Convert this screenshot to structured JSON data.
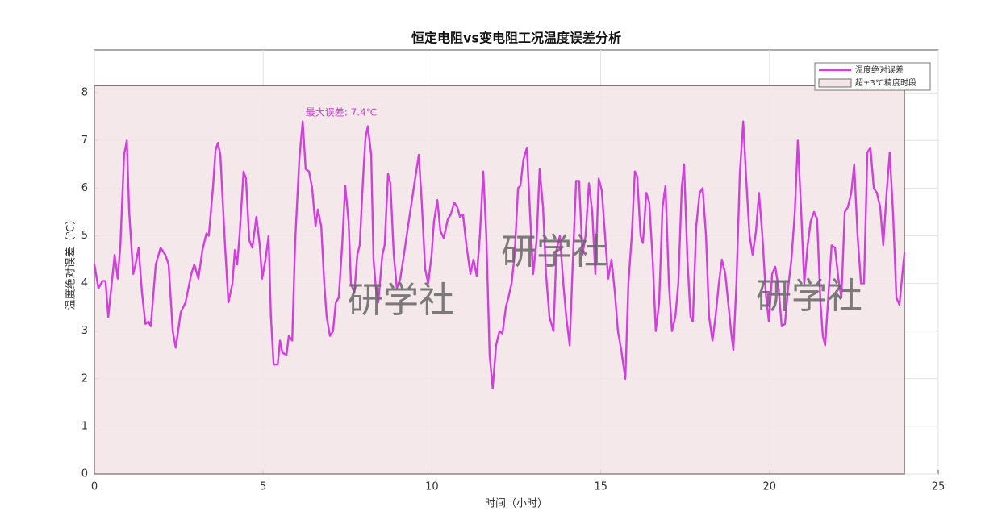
{
  "chart_data": {
    "type": "line",
    "title": "恒定电阻vs变电阻工况温度误差分析",
    "xlabel": "时间（小时）",
    "ylabel": "温度绝对误差（℃）",
    "annotation": "最大误差: 7.4℃",
    "watermark": "研学社",
    "xlim": [
      0,
      25
    ],
    "xticks": [
      0,
      5,
      10,
      15,
      20,
      25
    ],
    "ylim": [
      0,
      8.9
    ],
    "yticks": [
      0,
      1,
      2,
      3,
      4,
      5,
      6,
      7,
      8
    ],
    "grid": true,
    "legend": "upper right",
    "spans": [
      {
        "name": "超±3℃精度时段",
        "color": "#f3e6e8",
        "edge": "#7a6a6a",
        "x": [
          0,
          24
        ],
        "y": [
          0,
          8.15
        ]
      }
    ],
    "x": [
      0,
      0.12,
      0.24,
      0.33,
      0.41,
      0.6,
      0.69,
      0.77,
      0.88,
      0.96,
      1.03,
      1.15,
      1.22,
      1.31,
      1.41,
      1.51,
      1.6,
      1.67,
      1.82,
      1.96,
      2.1,
      2.2,
      2.32,
      2.41,
      2.56,
      2.7,
      2.87,
      2.96,
      3.08,
      3.2,
      3.32,
      3.39,
      3.51,
      3.59,
      3.66,
      3.73,
      3.87,
      3.97,
      4.09,
      4.16,
      4.23,
      4.3,
      4.42,
      4.49,
      4.59,
      4.68,
      4.8,
      4.9,
      4.97,
      5.07,
      5.16,
      5.23,
      5.31,
      5.43,
      5.5,
      5.57,
      5.69,
      5.76,
      5.86,
      5.95,
      6.07,
      6.17,
      6.26,
      6.36,
      6.45,
      6.55,
      6.62,
      6.72,
      6.81,
      6.88,
      6.98,
      7.07,
      7.15,
      7.24,
      7.34,
      7.43,
      7.53,
      7.6,
      7.7,
      7.79,
      7.86,
      7.96,
      8.03,
      8.1,
      8.2,
      8.27,
      8.34,
      8.41,
      8.53,
      8.6,
      8.7,
      8.77,
      8.87,
      8.96,
      9.06,
      9.15,
      9.27,
      9.46,
      9.61,
      9.7,
      9.8,
      9.89,
      9.99,
      10.06,
      10.16,
      10.25,
      10.35,
      10.47,
      10.56,
      10.66,
      10.75,
      10.83,
      10.92,
      11.02,
      11.14,
      11.23,
      11.33,
      11.42,
      11.52,
      11.61,
      11.71,
      11.8,
      11.9,
      12,
      12.09,
      12.19,
      12.28,
      12.36,
      12.45,
      12.55,
      12.62,
      12.71,
      12.81,
      12.91,
      13,
      13.1,
      13.19,
      13.29,
      13.38,
      13.48,
      13.6,
      13.69,
      13.79,
      13.89,
      13.98,
      14.08,
      14.17,
      14.27,
      14.36,
      14.46,
      14.55,
      14.65,
      14.75,
      14.84,
      14.94,
      15.03,
      15.13,
      15.22,
      15.32,
      15.42,
      15.51,
      15.61,
      15.73,
      15.82,
      15.92,
      16.01,
      16.08,
      16.18,
      16.25,
      16.35,
      16.44,
      16.54,
      16.63,
      16.73,
      16.83,
      16.92,
      17.02,
      17.11,
      17.21,
      17.3,
      17.4,
      17.47,
      17.57,
      17.66,
      17.73,
      17.83,
      17.93,
      18.02,
      18.12,
      18.21,
      18.31,
      18.4,
      18.5,
      18.59,
      18.69,
      18.79,
      18.86,
      18.93,
      19.02,
      19.12,
      19.22,
      19.31,
      19.41,
      19.5,
      19.6,
      19.69,
      19.79,
      19.89,
      19.98,
      20.08,
      20.17,
      20.27,
      20.36,
      20.46,
      20.55,
      20.65,
      20.75,
      20.84,
      20.94,
      21.03,
      21.13,
      21.22,
      21.32,
      21.41,
      21.51,
      21.58,
      21.65,
      21.75,
      21.84,
      21.94,
      22.04,
      22.13,
      22.23,
      22.32,
      22.42,
      22.51,
      22.61,
      22.71,
      22.8,
      22.9,
      22.99,
      23.09,
      23.18,
      23.28,
      23.37,
      23.47,
      23.56,
      23.66,
      23.76,
      23.85,
      23.95,
      24
    ],
    "series": [
      {
        "name": "温度绝对误差",
        "color": "#d23fdc",
        "values": [
          4.4,
          3.9,
          4.05,
          4.05,
          3.3,
          4.6,
          4.1,
          4.8,
          6.7,
          7.0,
          5.5,
          4.2,
          4.4,
          4.75,
          3.8,
          3.15,
          3.2,
          3.1,
          4.4,
          4.75,
          4.6,
          4.4,
          3.0,
          2.65,
          3.4,
          3.6,
          4.2,
          4.4,
          4.1,
          4.7,
          5.05,
          5.0,
          6.0,
          6.8,
          6.95,
          6.7,
          4.8,
          3.6,
          4.0,
          4.7,
          4.4,
          5.0,
          6.35,
          6.2,
          4.9,
          4.75,
          5.4,
          4.8,
          4.1,
          4.5,
          5.0,
          3.3,
          2.3,
          2.3,
          2.8,
          2.55,
          2.5,
          2.9,
          2.8,
          4.9,
          6.6,
          7.4,
          6.4,
          6.35,
          6.0,
          5.2,
          5.55,
          5.2,
          4.0,
          3.3,
          2.9,
          3.0,
          3.6,
          3.7,
          4.8,
          6.05,
          5.3,
          4.0,
          3.8,
          4.6,
          4.8,
          6.2,
          7.05,
          7.3,
          6.7,
          4.5,
          3.9,
          3.6,
          4.6,
          4.8,
          6.3,
          6.1,
          4.6,
          3.9,
          4.1,
          4.5,
          5.1,
          6.0,
          6.7,
          5.7,
          4.3,
          4.0,
          4.6,
          5.3,
          5.75,
          5.1,
          4.95,
          5.35,
          5.45,
          5.7,
          5.6,
          5.4,
          5.45,
          4.8,
          4.2,
          4.5,
          4.15,
          5.0,
          6.35,
          5.0,
          2.5,
          1.8,
          2.7,
          3.0,
          2.95,
          3.5,
          3.75,
          4.0,
          4.6,
          6.0,
          6.05,
          6.6,
          6.85,
          5.4,
          4.2,
          4.9,
          6.4,
          5.6,
          4.2,
          3.3,
          3.0,
          4.7,
          5.0,
          4.0,
          3.3,
          2.7,
          4.4,
          6.15,
          6.15,
          4.6,
          5.0,
          6.1,
          5.5,
          4.2,
          6.2,
          5.95,
          5.0,
          4.1,
          4.5,
          3.8,
          3.0,
          2.6,
          2.0,
          4.0,
          5.0,
          6.35,
          6.25,
          5.0,
          4.85,
          5.9,
          5.7,
          4.5,
          3.0,
          3.6,
          5.6,
          6.05,
          4.0,
          3.0,
          3.3,
          4.0,
          6.0,
          6.5,
          4.5,
          3.3,
          3.2,
          5.2,
          5.9,
          6.0,
          5.0,
          3.3,
          2.8,
          3.3,
          4.0,
          4.5,
          4.2,
          3.5,
          3.0,
          2.6,
          4.0,
          6.3,
          7.4,
          6.2,
          5.0,
          4.6,
          5.1,
          5.9,
          5.0,
          3.8,
          3.2,
          4.2,
          4.35,
          3.9,
          3.1,
          3.15,
          3.9,
          4.5,
          5.5,
          7.0,
          5.5,
          4.0,
          4.8,
          5.3,
          5.5,
          5.35,
          3.6,
          2.9,
          2.7,
          3.8,
          4.8,
          4.75,
          4.1,
          3.7,
          5.5,
          5.6,
          5.9,
          6.5,
          5.0,
          4.0,
          4.0,
          6.75,
          6.85,
          6.0,
          5.9,
          5.6,
          4.8,
          5.9,
          6.75,
          5.5,
          3.7,
          3.55,
          4.3,
          4.65
        ]
      }
    ]
  }
}
